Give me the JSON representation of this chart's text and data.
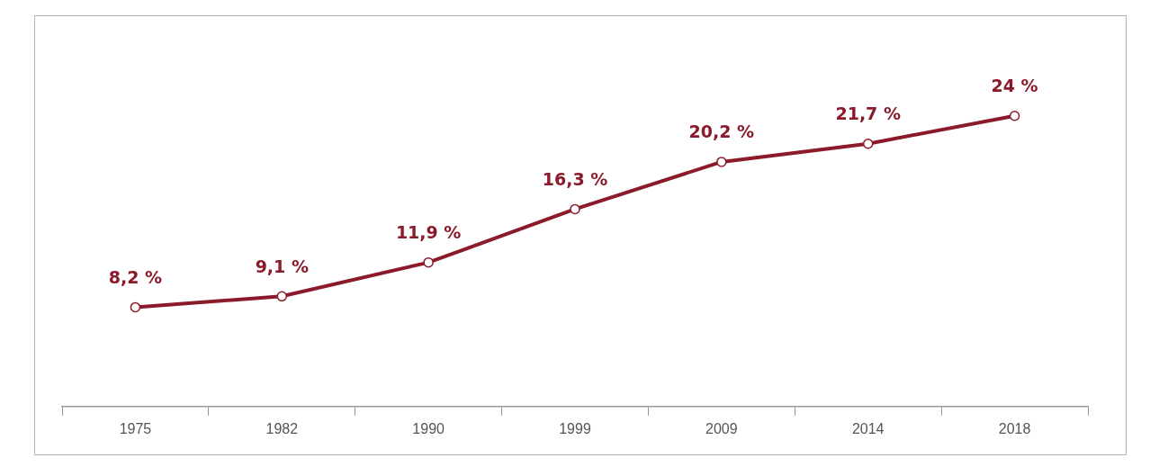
{
  "chart_data": {
    "type": "line",
    "categories": [
      "1975",
      "1982",
      "1990",
      "1999",
      "2009",
      "2014",
      "2018"
    ],
    "series": [
      {
        "color": "#8b1a2b",
        "values": [
          8.2,
          9.1,
          11.9,
          16.3,
          20.2,
          21.7,
          24
        ],
        "value_labels": [
          "8,2 %",
          "9,1 %",
          "11,9 %",
          "16,3 %",
          "20,2 %",
          "21,7 %",
          "24 %"
        ]
      }
    ],
    "marker": "circle",
    "line_style": "solid",
    "legend": false,
    "grid": false
  }
}
